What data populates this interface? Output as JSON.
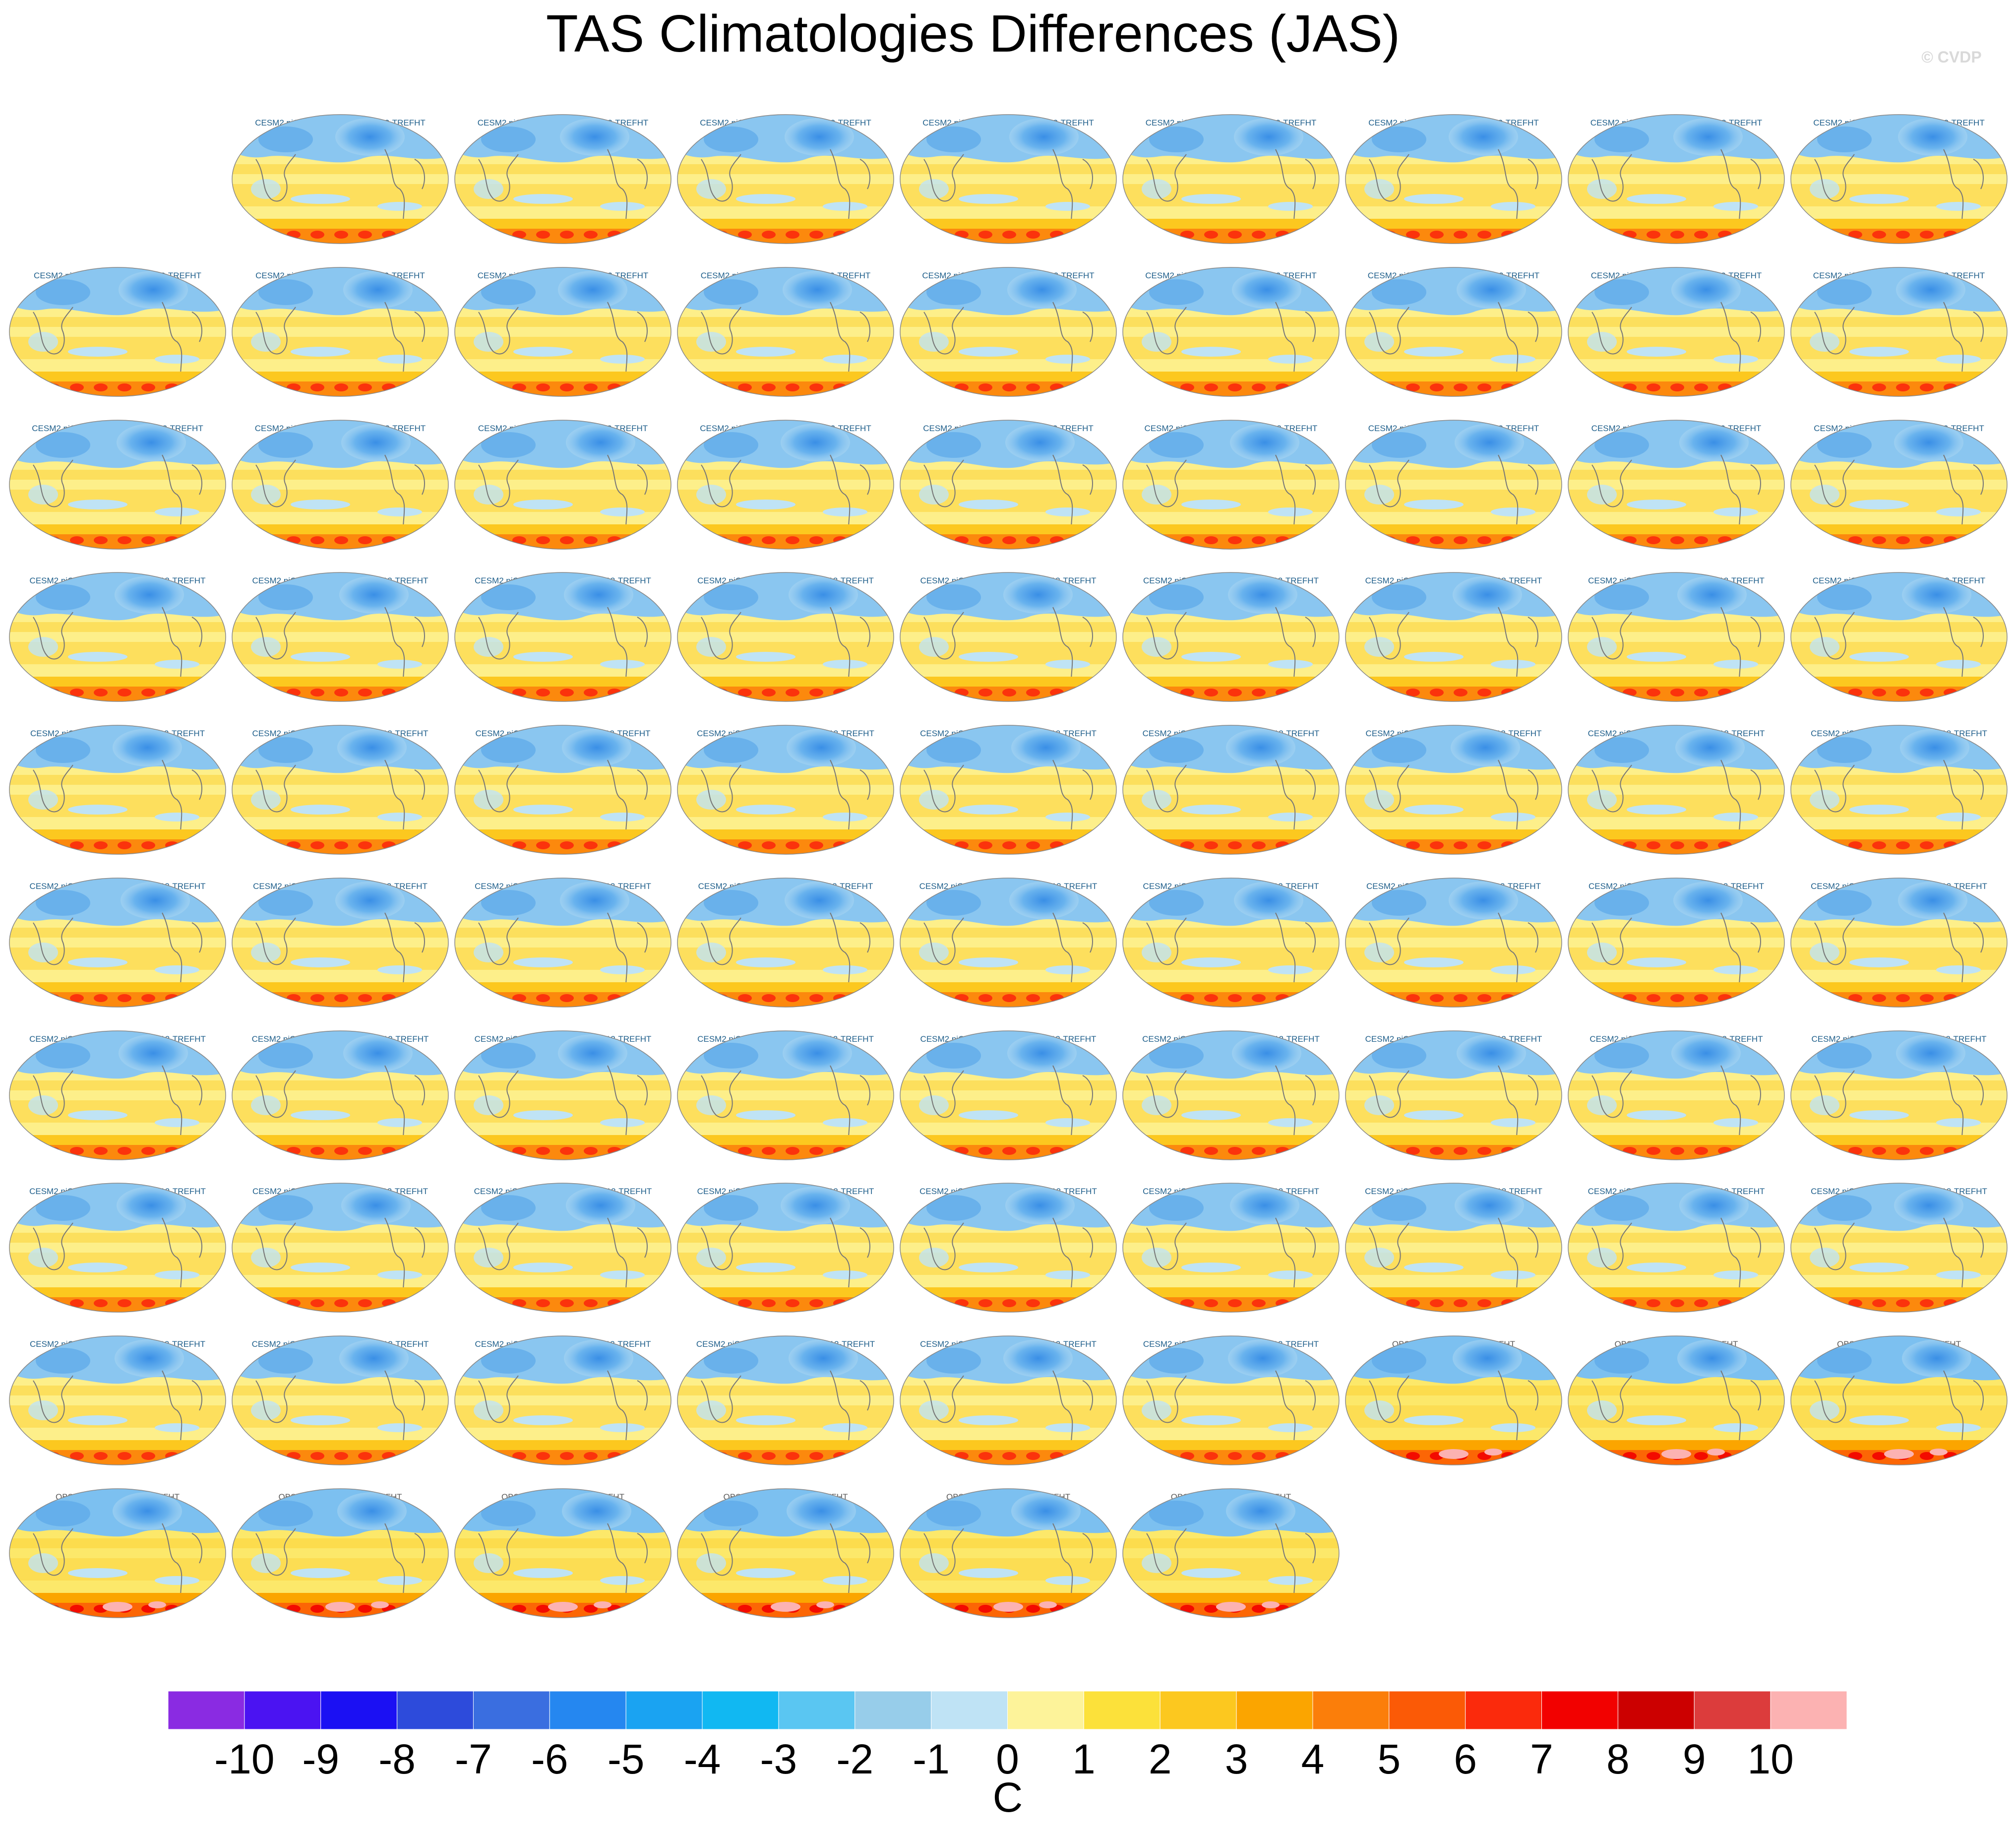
{
  "title": "TAS Climatologies Differences (JAS)",
  "watermark": "© CVDP",
  "colorbar": {
    "unit": "C",
    "tick_labels": [
      "-10",
      "-9",
      "-8",
      "-7",
      "-6",
      "-5",
      "-4",
      "-3",
      "-2",
      "-1",
      "0",
      "1",
      "2",
      "3",
      "4",
      "5",
      "6",
      "7",
      "8",
      "9",
      "10"
    ],
    "colors": [
      "#8a2be2",
      "#4b13f2",
      "#1b10f3",
      "#2d4bdb",
      "#3a6ee0",
      "#2587f0",
      "#1aa3f2",
      "#11b8f2",
      "#5ac6f2",
      "#97cdea",
      "#bfe3f5",
      "#fdf39a",
      "#fce13a",
      "#fcc81f",
      "#fba500",
      "#fb7e0a",
      "#fb5a06",
      "#fb2a0c",
      "#f20100",
      "#cc0000",
      "#dc3c3c",
      "#fcb2b2"
    ]
  },
  "panels": [
    "CESM2 piControl A-CESM3dev-112-TREFHT",
    "CESM2 piControl B-CESM3dev-112-TREFHT",
    "CESM2 piControl C-CESM3dev-112-TREFHT",
    "CESM2 piControl D-CESM3dev-112-TREFHT",
    "CESM2 piControl E-CESM3dev-112-TREFHT",
    "CESM2 piControl F-CESM3dev-112-TREFHT",
    "CESM2 piControl G-CESM3dev-112-TREFHT",
    "CESM2 piControl H-CESM3dev-112-TREFHT",
    "CESM2 piControl I-CESM3dev-112-TREFHT",
    "CESM2 piControl J-CESM3dev-112-TREFHT",
    "CESM2 piControl K-CESM3dev-112-TREFHT",
    "CESM2 piControl L-CESM3dev-112-TREFHT",
    "CESM2 piControl M-CESM3dev-112-TREFHT",
    "CESM2 piControl N-CESM3dev-112-TREFHT",
    "CESM2 piControl O-CESM3dev-112-TREFHT",
    "CESM2 piControl P-CESM3dev-112-TREFHT",
    "CESM2 piControl Q-CESM3dev-112-TREFHT",
    "CESM2 piControl R-CESM3dev-112-TREFHT",
    "CESM2 piControl S-CESM3dev-112-TREFHT",
    "CESM2 piControl T-CESM3dev-112-TREFHT",
    "CESM2 piControl U-CESM3dev-112-TREFHT",
    "CESM2 piControl V-CESM3dev-112-TREFHT",
    "CESM2 piControl W-CESM3dev-112-TREFHT",
    "CESM2 piControl X-CESM3dev-112-TREFHT",
    "CESM2 piControl Y-CESM3dev-112-TREFHT",
    "CESM2 piControl Z-CESM3dev-112-TREFHT",
    "CESM2 piControl AA-CESM3dev-112-TREFHT",
    "CESM2 piControl AB-CESM3dev-112-TREFHT",
    "CESM2 piControl AC-CESM3dev-112-TREFHT",
    "CESM2 piControl AD-CESM3dev-112-TREFHT",
    "CESM2 piControl AE-CESM3dev-112-TREFHT",
    "CESM2 piControl AF-CESM3dev-112-TREFHT",
    "CESM2 piControl AG-CESM3dev-112-TREFHT",
    "CESM2 piControl AH-CESM3dev-112-TREFHT",
    "CESM2 piControl AI-CESM3dev-112-TREFHT",
    "CESM2 piControl AJ-CESM3dev-112-TREFHT",
    "CESM2 piControl AK-CESM3dev-112-TREFHT",
    "CESM2 piControl AL-CESM3dev-112-TREFHT",
    "CESM2 piControl AM-CESM3dev-112-TREFHT",
    "CESM2 piControl AN-CESM3dev-112-TREFHT",
    "CESM2 piControl AO-CESM3dev-112-TREFHT",
    "CESM2 piControl AP-CESM3dev-112-TREFHT",
    "CESM2 piControl AQ-CESM3dev-112-TREFHT",
    "CESM2 piControl AR-CESM3dev-112-TREFHT",
    "CESM2 piControl AS-CESM3dev-112-TREFHT",
    "CESM2 piControl AT-CESM3dev-112-TREFHT",
    "CESM2 piControl AU-CESM3dev-112-TREFHT",
    "CESM2 piControl AV-CESM3dev-112-TREFHT",
    "CESM2 piControl AW-CESM3dev-112-TREFHT",
    "CESM2 piControl AX-CESM3dev-112-TREFHT",
    "CESM2 piControl AY-CESM3dev-112-TREFHT",
    "CESM2 piControl AZ-CESM3dev-112-TREFHT",
    "CESM2 piControl BA-CESM3dev-112-TREFHT",
    "CESM2 piControl BB-CESM3dev-112-TREFHT",
    "CESM2 piControl BC-CESM3dev-112-TREFHT",
    "CESM2 piControl BD-CESM3dev-112-TREFHT",
    "CESM2 piControl BE-CESM3dev-112-TREFHT",
    "CESM2 piControl BF-CESM3dev-112-TREFHT",
    "CESM2 piControl BG-CESM3dev-112-TREFHT",
    "CESM2 piControl BH-CESM3dev-112-TREFHT",
    "CESM2 piControl BI-CESM3dev-112-TREFHT",
    "CESM2 piControl BJ-CESM3dev-112-TREFHT",
    "CESM2 piControl BK-CESM3dev-112-TREFHT",
    "CESM2 piControl BL-CESM3dev-112-TREFHT",
    "CESM2 piControl BM-CESM3dev-112-TREFHT",
    "CESM2 piControl BN-CESM3dev-112-TREFHT",
    "CESM2 piControl BO-CESM3dev-112-TREFHT",
    "CESM2 piControl BP-CESM3dev-112-TREFHT",
    "CESM2 piControl BQ-CESM3dev-112-TREFHT",
    "CESM2 piControl BR-CESM3dev-112-TREFHT",
    "CESM2 piControl BS-CESM3dev-112-TREFHT",
    "CESM2 piControl BT-CESM3dev-112-TREFHT",
    "CESM2 piControl BU-CESM3dev-112-TREFHT",
    "CESM2 piControl BV-CESM3dev-112-TREFHT",
    "CESM2 piControl BW-CESM3dev-112-TREFHT",
    "CESM2 piControl BX-CESM3dev-112-TREFHT",
    "CESM2 piControl BY-CESM3dev-112-TREFHT",
    "OBS A-CESM3dev-112-TREFHT",
    "OBS B-CESM3dev-112-TREFHT",
    "OBS C-CESM3dev-112-TREFHT",
    "OBS D-CESM3dev-112-TREFHT",
    "OBS E-CESM3dev-112-TREFHT",
    "OBS F-CESM3dev-112-TREFHT",
    "OBS G-CESM3dev-112-TREFHT",
    "OBS H-CESM3dev-112-TREFHT",
    "OBS I-CESM3dev-112-TREFHT"
  ],
  "chart_data": {
    "type": "heatmap",
    "title": "TAS Climatologies Differences (JAS)",
    "colorbar_label": "C",
    "levels": [
      -10,
      -9,
      -8,
      -7,
      -6,
      -5,
      -4,
      -3,
      -2,
      -1,
      0,
      1,
      2,
      3,
      4,
      5,
      6,
      7,
      8,
      9,
      10
    ],
    "panel_count": 86
  }
}
